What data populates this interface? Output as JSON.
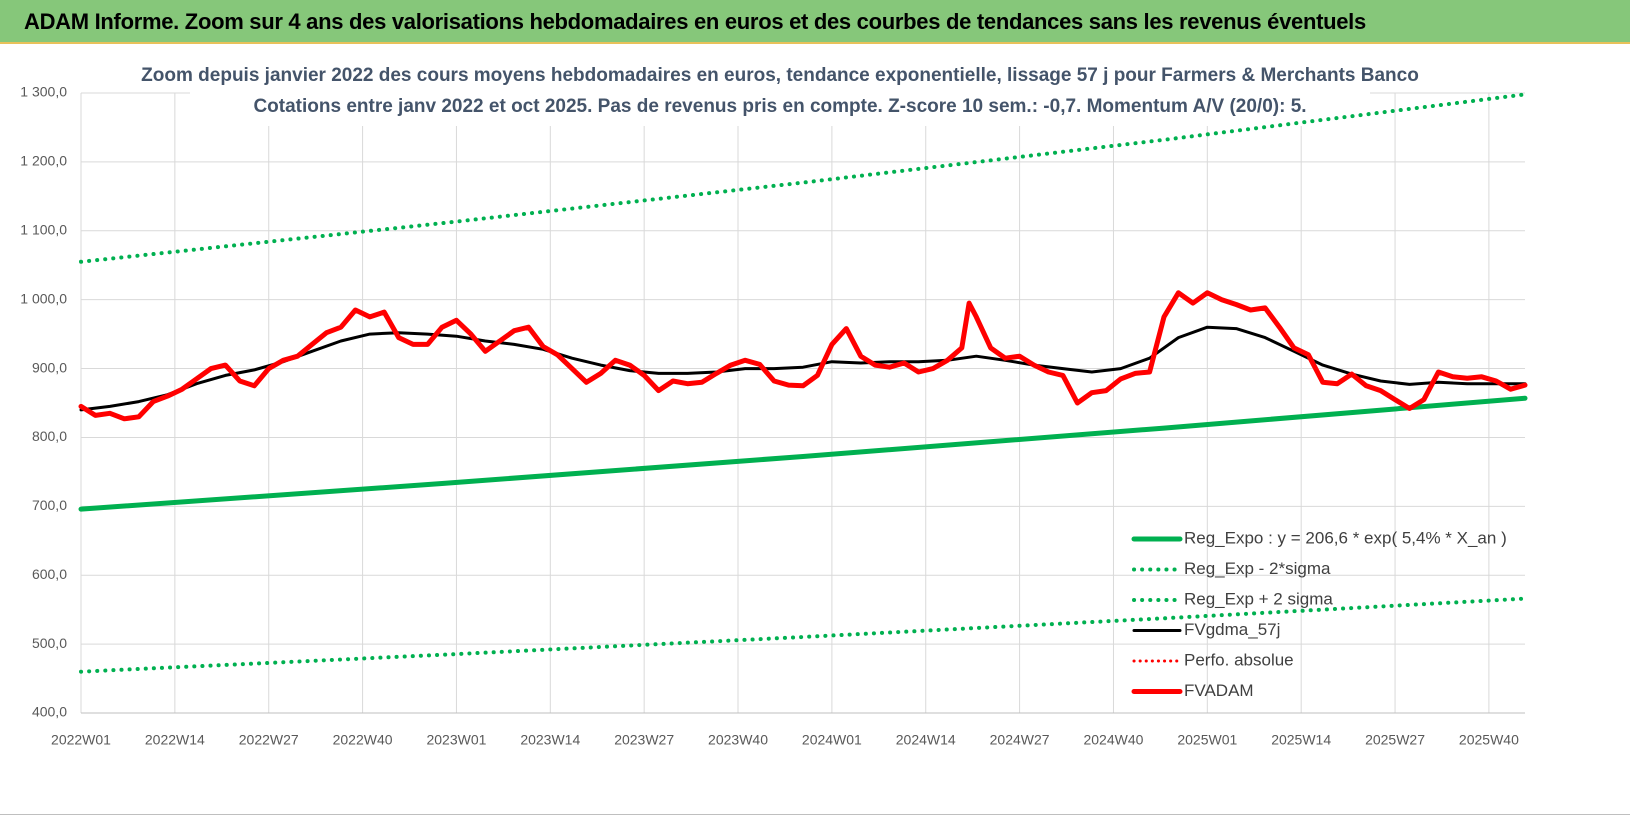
{
  "header": {
    "title": "ADAM Informe. Zoom sur 4 ans des valorisations hebdomadaires en euros et des courbes de tendances sans les revenus éventuels"
  },
  "chart_data": {
    "type": "line",
    "title": "Zoom depuis janvier 2022 des cours moyens hebdomadaires en euros, tendance exponentielle, lissage 57 j pour Farmers & Merchants Banco",
    "subtitle": "Cotations entre janv 2022 et oct 2025. Pas de revenus pris en compte. Z-score 10 sem.: -0,7.  Momentum A/V (20/0): 5.",
    "xlim": [
      0,
      200
    ],
    "xticks": [
      {
        "value": 0,
        "label": "2022W01"
      },
      {
        "value": 13,
        "label": "2022W14"
      },
      {
        "value": 26,
        "label": "2022W27"
      },
      {
        "value": 39,
        "label": "2022W40"
      },
      {
        "value": 52,
        "label": "2023W01"
      },
      {
        "value": 65,
        "label": "2023W14"
      },
      {
        "value": 78,
        "label": "2023W27"
      },
      {
        "value": 91,
        "label": "2023W40"
      },
      {
        "value": 104,
        "label": "2024W01"
      },
      {
        "value": 117,
        "label": "2024W14"
      },
      {
        "value": 130,
        "label": "2024W27"
      },
      {
        "value": 143,
        "label": "2024W40"
      },
      {
        "value": 156,
        "label": "2025W01"
      },
      {
        "value": 169,
        "label": "2025W14"
      },
      {
        "value": 182,
        "label": "2025W27"
      },
      {
        "value": 195,
        "label": "2025W40"
      }
    ],
    "ylim": [
      400,
      1300
    ],
    "yticks": [
      {
        "value": 400,
        "label": "400,0"
      },
      {
        "value": 500,
        "label": "500,0"
      },
      {
        "value": 600,
        "label": "600,0"
      },
      {
        "value": 700,
        "label": "700,0"
      },
      {
        "value": 800,
        "label": "800,0"
      },
      {
        "value": 900,
        "label": "900,0"
      },
      {
        "value": 1000,
        "label": "1 000,0"
      },
      {
        "value": 1100,
        "label": "1 100,0"
      },
      {
        "value": 1200,
        "label": "1 200,0"
      },
      {
        "value": 1300,
        "label": "1 300,0"
      }
    ],
    "grid": true,
    "legend": "bottom-right",
    "series": [
      {
        "name": "Reg_Expo : y = 206,6 * exp( 5,4% *  X_an )",
        "color": "#00b050",
        "style": "solid",
        "width": 5,
        "x": [
          0,
          50,
          100,
          150,
          200
        ],
        "values": [
          696,
          733.2,
          772.4,
          813.6,
          857
        ]
      },
      {
        "name": "Reg_Exp - 2*sigma",
        "color": "#00b050",
        "style": "dotted",
        "width": 4,
        "x": [
          0,
          50,
          100,
          150,
          200
        ],
        "values": [
          460,
          484.5,
          510.3,
          537.5,
          566
        ]
      },
      {
        "name": "Reg_Exp + 2 sigma",
        "color": "#00b050",
        "style": "dotted",
        "width": 4,
        "x": [
          0,
          50,
          100,
          150,
          200
        ],
        "values": [
          1055,
          1111,
          1170,
          1232,
          1298
        ]
      },
      {
        "name": "FVgdma_57j",
        "color": "#000000",
        "style": "solid",
        "width": 3,
        "x": [
          0,
          4,
          8,
          12,
          16,
          20,
          24,
          28,
          32,
          36,
          40,
          44,
          48,
          52,
          56,
          60,
          64,
          68,
          72,
          76,
          80,
          84,
          88,
          92,
          96,
          100,
          104,
          108,
          112,
          116,
          120,
          124,
          128,
          132,
          136,
          140,
          144,
          148,
          152,
          156,
          160,
          164,
          168,
          172,
          176,
          180,
          184,
          188,
          192,
          196,
          200
        ],
        "values": [
          840,
          845,
          852,
          862,
          878,
          890,
          898,
          910,
          925,
          940,
          950,
          952,
          950,
          947,
          940,
          935,
          928,
          915,
          905,
          897,
          893,
          893,
          895,
          900,
          900,
          902,
          910,
          908,
          910,
          910,
          912,
          918,
          912,
          905,
          900,
          895,
          900,
          915,
          945,
          960,
          958,
          945,
          925,
          905,
          892,
          882,
          877,
          880,
          878,
          878,
          878
        ]
      },
      {
        "name": "Perfo. absolue",
        "color": "#ff0000",
        "style": "dotted",
        "width": 3,
        "x": [],
        "values": []
      },
      {
        "name": "FVADAM",
        "color": "#ff0000",
        "style": "solid",
        "width": 5,
        "x": [
          0,
          2,
          4,
          6,
          8,
          10,
          12,
          14,
          16,
          18,
          20,
          22,
          24,
          26,
          28,
          30,
          32,
          34,
          36,
          38,
          40,
          42,
          44,
          46,
          48,
          50,
          52,
          54,
          56,
          58,
          60,
          62,
          64,
          66,
          68,
          70,
          72,
          74,
          76,
          78,
          80,
          82,
          84,
          86,
          88,
          90,
          92,
          94,
          96,
          98,
          100,
          102,
          104,
          106,
          108,
          110,
          112,
          114,
          116,
          118,
          120,
          122,
          123,
          124,
          126,
          128,
          130,
          132,
          134,
          136,
          138,
          140,
          142,
          144,
          146,
          148,
          150,
          152,
          154,
          156,
          158,
          160,
          162,
          164,
          166,
          168,
          170,
          172,
          174,
          176,
          178,
          180,
          182,
          184,
          186,
          188,
          190,
          192,
          194,
          196,
          198,
          200
        ],
        "values": [
          845,
          832,
          835,
          827,
          830,
          852,
          860,
          870,
          885,
          900,
          905,
          882,
          875,
          900,
          912,
          918,
          935,
          952,
          960,
          985,
          975,
          982,
          945,
          935,
          935,
          960,
          970,
          950,
          925,
          940,
          955,
          960,
          932,
          920,
          900,
          880,
          893,
          912,
          905,
          890,
          868,
          882,
          878,
          880,
          893,
          905,
          912,
          906,
          882,
          876,
          875,
          890,
          935,
          958,
          918,
          905,
          902,
          908,
          895,
          900,
          912,
          930,
          995,
          975,
          930,
          915,
          918,
          905,
          895,
          890,
          850,
          865,
          868,
          885,
          893,
          895,
          975,
          1010,
          995,
          1010,
          1000,
          993,
          985,
          988,
          960,
          930,
          920,
          880,
          878,
          892,
          875,
          868,
          855,
          842,
          855,
          895,
          888,
          886,
          888,
          882,
          870,
          876
        ]
      }
    ]
  }
}
